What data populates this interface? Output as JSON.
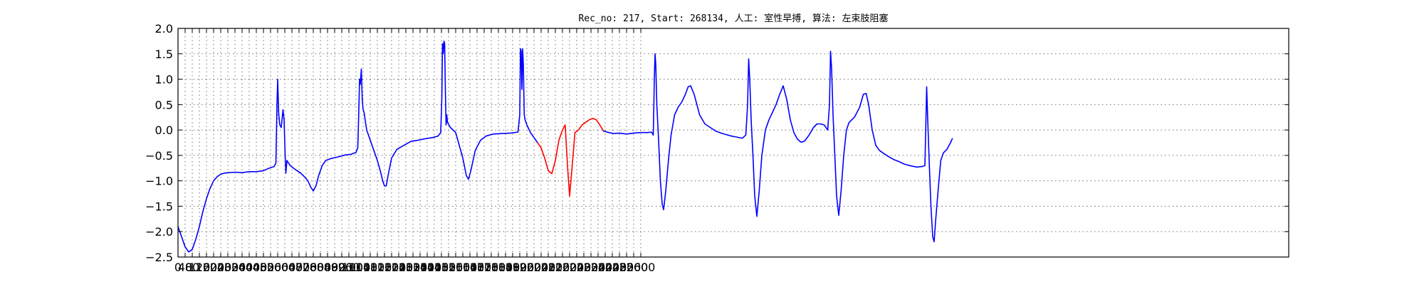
{
  "chart_data": {
    "type": "line",
    "title": "Rec_no: 217, Start: 268134, 人工: 室性早搏, 算法: 左束肢阻塞",
    "xlabel": "",
    "ylabel": "",
    "xlim": [
      0,
      6240
    ],
    "ylim": [
      -2.5,
      2.0
    ],
    "grid": true,
    "y_ticks": [
      -2.5,
      -2.0,
      -1.5,
      -1.0,
      -0.5,
      0.0,
      0.5,
      1.0,
      1.5,
      2.0
    ],
    "y_tick_labels": [
      "−2.5",
      "−2.0",
      "−1.5",
      "−1.0",
      "−0.5",
      "0.0",
      "0.5",
      "1.0",
      "1.5",
      "2.0"
    ],
    "x_tick_labels": [
      "0",
      "40",
      "80",
      "120",
      "160",
      "200",
      "240",
      "280",
      "320",
      "360",
      "400",
      "440",
      "480",
      "520",
      "560",
      "600",
      "640",
      "680",
      "720",
      "760",
      "800",
      "840",
      "880",
      "920",
      "960",
      "1000",
      "1040",
      "1080",
      "1120",
      "1160",
      "1200",
      "1240",
      "1280",
      "1320",
      "1360",
      "1400",
      "1440",
      "1480",
      "1520",
      "1560",
      "1600",
      "1640",
      "1680",
      "1720",
      "1760",
      "1800",
      "1840",
      "1880",
      "1920",
      "1960",
      "2000",
      "2040",
      "2080",
      "2120",
      "2160",
      "2200",
      "2240",
      "2280",
      "2320",
      "2360",
      "2400",
      "2440",
      "2480",
      "2520",
      "2560",
      "2600"
    ],
    "series": [
      {
        "color": "#0000ff",
        "points": [
          [
            0,
            -1.9
          ],
          [
            20,
            -2.1
          ],
          [
            40,
            -2.3
          ],
          [
            60,
            -2.4
          ],
          [
            80,
            -2.35
          ],
          [
            100,
            -2.15
          ],
          [
            120,
            -1.9
          ],
          [
            140,
            -1.6
          ],
          [
            160,
            -1.35
          ],
          [
            180,
            -1.15
          ],
          [
            200,
            -1.0
          ],
          [
            220,
            -0.92
          ],
          [
            240,
            -0.87
          ],
          [
            260,
            -0.85
          ],
          [
            280,
            -0.84
          ],
          [
            320,
            -0.83
          ],
          [
            360,
            -0.84
          ],
          [
            400,
            -0.82
          ],
          [
            440,
            -0.82
          ],
          [
            480,
            -0.8
          ],
          [
            500,
            -0.77
          ],
          [
            520,
            -0.74
          ],
          [
            540,
            -0.72
          ],
          [
            550,
            -0.65
          ],
          [
            556,
            0.5
          ],
          [
            560,
            1.0
          ],
          [
            566,
            0.3
          ],
          [
            572,
            0.1
          ],
          [
            580,
            0.05
          ],
          [
            590,
            0.4
          ],
          [
            596,
            0.2
          ],
          [
            602,
            -0.5
          ],
          [
            606,
            -0.85
          ],
          [
            612,
            -0.6
          ],
          [
            630,
            -0.7
          ],
          [
            660,
            -0.78
          ],
          [
            690,
            -0.85
          ],
          [
            710,
            -0.92
          ],
          [
            730,
            -1.0
          ],
          [
            745,
            -1.12
          ],
          [
            760,
            -1.2
          ],
          [
            775,
            -1.1
          ],
          [
            790,
            -0.9
          ],
          [
            810,
            -0.7
          ],
          [
            830,
            -0.6
          ],
          [
            860,
            -0.56
          ],
          [
            900,
            -0.53
          ],
          [
            940,
            -0.49
          ],
          [
            970,
            -0.48
          ],
          [
            1000,
            -0.44
          ],
          [
            1010,
            -0.35
          ],
          [
            1015,
            0.3
          ],
          [
            1020,
            1.0
          ],
          [
            1024,
            0.9
          ],
          [
            1030,
            1.2
          ],
          [
            1035,
            0.6
          ],
          [
            1040,
            0.4
          ],
          [
            1045,
            0.35
          ],
          [
            1060,
            0.0
          ],
          [
            1080,
            -0.2
          ],
          [
            1100,
            -0.4
          ],
          [
            1120,
            -0.6
          ],
          [
            1140,
            -0.85
          ],
          [
            1150,
            -1.0
          ],
          [
            1160,
            -1.1
          ],
          [
            1170,
            -1.1
          ],
          [
            1180,
            -0.9
          ],
          [
            1200,
            -0.55
          ],
          [
            1230,
            -0.38
          ],
          [
            1270,
            -0.3
          ],
          [
            1310,
            -0.22
          ],
          [
            1350,
            -0.2
          ],
          [
            1390,
            -0.17
          ],
          [
            1430,
            -0.15
          ],
          [
            1460,
            -0.12
          ],
          [
            1476,
            -0.05
          ],
          [
            1482,
            0.6
          ],
          [
            1486,
            1.7
          ],
          [
            1490,
            1.5
          ],
          [
            1494,
            1.75
          ],
          [
            1498,
            1.7
          ],
          [
            1502,
            0.8
          ],
          [
            1506,
            0.1
          ],
          [
            1510,
            0.3
          ],
          [
            1514,
            0.15
          ],
          [
            1530,
            0.05
          ],
          [
            1560,
            -0.05
          ],
          [
            1580,
            -0.3
          ],
          [
            1600,
            -0.55
          ],
          [
            1620,
            -0.9
          ],
          [
            1632,
            -0.97
          ],
          [
            1645,
            -0.8
          ],
          [
            1670,
            -0.4
          ],
          [
            1700,
            -0.2
          ],
          [
            1730,
            -0.12
          ],
          [
            1770,
            -0.08
          ],
          [
            1820,
            -0.07
          ],
          [
            1870,
            -0.06
          ],
          [
            1910,
            -0.04
          ],
          [
            1920,
            0.3
          ],
          [
            1924,
            1.6
          ],
          [
            1928,
            1.55
          ],
          [
            1932,
            0.8
          ],
          [
            1936,
            1.6
          ],
          [
            1940,
            1.3
          ],
          [
            1945,
            0.3
          ],
          [
            1950,
            0.2
          ],
          [
            1960,
            0.1
          ],
          [
            1980,
            -0.05
          ],
          [
            2000,
            -0.15
          ],
          [
            2020,
            -0.25
          ]
        ]
      },
      {
        "color": "#ff0000",
        "points": [
          [
            2020,
            -0.25
          ],
          [
            2040,
            -0.35
          ],
          [
            2060,
            -0.55
          ],
          [
            2080,
            -0.8
          ],
          [
            2100,
            -0.86
          ],
          [
            2120,
            -0.6
          ],
          [
            2140,
            -0.2
          ],
          [
            2160,
            0.0
          ],
          [
            2175,
            0.1
          ],
          [
            2180,
            -0.2
          ],
          [
            2190,
            -0.8
          ],
          [
            2200,
            -1.3
          ],
          [
            2210,
            -0.9
          ],
          [
            2230,
            -0.05
          ],
          [
            2250,
            0.0
          ],
          [
            2270,
            0.1
          ],
          [
            2290,
            0.15
          ],
          [
            2310,
            0.2
          ],
          [
            2330,
            0.23
          ],
          [
            2350,
            0.2
          ],
          [
            2370,
            0.1
          ],
          [
            2390,
            -0.02
          ]
        ]
      },
      {
        "color": "#0000ff",
        "points": [
          [
            2390,
            -0.02
          ],
          [
            2420,
            -0.05
          ],
          [
            2450,
            -0.07
          ],
          [
            2480,
            -0.06
          ],
          [
            2520,
            -0.08
          ],
          [
            2560,
            -0.06
          ],
          [
            2600,
            -0.05
          ],
          [
            2640,
            -0.05
          ],
          [
            2660,
            -0.04
          ],
          [
            2670,
            -0.1
          ],
          [
            2676,
            1.0
          ],
          [
            2680,
            1.5
          ],
          [
            2684,
            1.3
          ],
          [
            2690,
            0.5
          ],
          [
            2700,
            -0.2
          ],
          [
            2710,
            -1.0
          ],
          [
            2720,
            -1.45
          ],
          [
            2728,
            -1.57
          ],
          [
            2740,
            -1.2
          ],
          [
            2755,
            -0.6
          ],
          [
            2770,
            -0.1
          ],
          [
            2790,
            0.3
          ],
          [
            2810,
            0.45
          ],
          [
            2830,
            0.55
          ],
          [
            2850,
            0.7
          ],
          [
            2866,
            0.85
          ],
          [
            2880,
            0.87
          ],
          [
            2900,
            0.7
          ],
          [
            2930,
            0.3
          ],
          [
            2960,
            0.12
          ],
          [
            2990,
            0.05
          ],
          [
            3020,
            -0.02
          ],
          [
            3050,
            -0.06
          ],
          [
            3080,
            -0.09
          ],
          [
            3110,
            -0.12
          ],
          [
            3140,
            -0.14
          ],
          [
            3170,
            -0.16
          ],
          [
            3190,
            -0.1
          ],
          [
            3200,
            0.5
          ],
          [
            3206,
            1.4
          ],
          [
            3212,
            1.0
          ],
          [
            3220,
            0.2
          ],
          [
            3230,
            -0.5
          ],
          [
            3240,
            -1.3
          ],
          [
            3252,
            -1.7
          ],
          [
            3265,
            -1.2
          ],
          [
            3280,
            -0.5
          ],
          [
            3300,
            0.0
          ],
          [
            3320,
            0.2
          ],
          [
            3340,
            0.35
          ],
          [
            3360,
            0.5
          ],
          [
            3380,
            0.7
          ],
          [
            3400,
            0.87
          ],
          [
            3420,
            0.6
          ],
          [
            3440,
            0.2
          ],
          [
            3460,
            -0.05
          ],
          [
            3480,
            -0.18
          ],
          [
            3500,
            -0.24
          ],
          [
            3520,
            -0.22
          ],
          [
            3545,
            -0.1
          ],
          [
            3570,
            0.05
          ],
          [
            3590,
            0.12
          ],
          [
            3610,
            0.12
          ],
          [
            3630,
            0.1
          ],
          [
            3650,
            0.0
          ],
          [
            3660,
            0.5
          ],
          [
            3666,
            1.55
          ],
          [
            3672,
            1.2
          ],
          [
            3680,
            0.3
          ],
          [
            3690,
            -0.5
          ],
          [
            3700,
            -1.3
          ],
          [
            3712,
            -1.68
          ],
          [
            3725,
            -1.2
          ],
          [
            3740,
            -0.5
          ],
          [
            3755,
            0.0
          ],
          [
            3770,
            0.15
          ],
          [
            3800,
            0.25
          ],
          [
            3830,
            0.45
          ],
          [
            3850,
            0.7
          ],
          [
            3866,
            0.72
          ],
          [
            3880,
            0.5
          ],
          [
            3900,
            0.0
          ],
          [
            3920,
            -0.3
          ],
          [
            3940,
            -0.4
          ],
          [
            3960,
            -0.45
          ],
          [
            3990,
            -0.52
          ],
          [
            4020,
            -0.58
          ],
          [
            4050,
            -0.62
          ],
          [
            4080,
            -0.67
          ],
          [
            4110,
            -0.7
          ],
          [
            4150,
            -0.73
          ],
          [
            4180,
            -0.72
          ],
          [
            4196,
            -0.7
          ],
          [
            4202,
            0.2
          ],
          [
            4206,
            0.85
          ],
          [
            4212,
            0.2
          ],
          [
            4220,
            -0.6
          ],
          [
            4230,
            -1.5
          ],
          [
            4240,
            -2.1
          ],
          [
            4248,
            -2.2
          ],
          [
            4256,
            -1.8
          ],
          [
            4270,
            -1.2
          ],
          [
            4285,
            -0.6
          ],
          [
            4300,
            -0.45
          ],
          [
            4320,
            -0.38
          ],
          [
            4340,
            -0.25
          ],
          [
            4350,
            -0.17
          ]
        ]
      }
    ]
  }
}
